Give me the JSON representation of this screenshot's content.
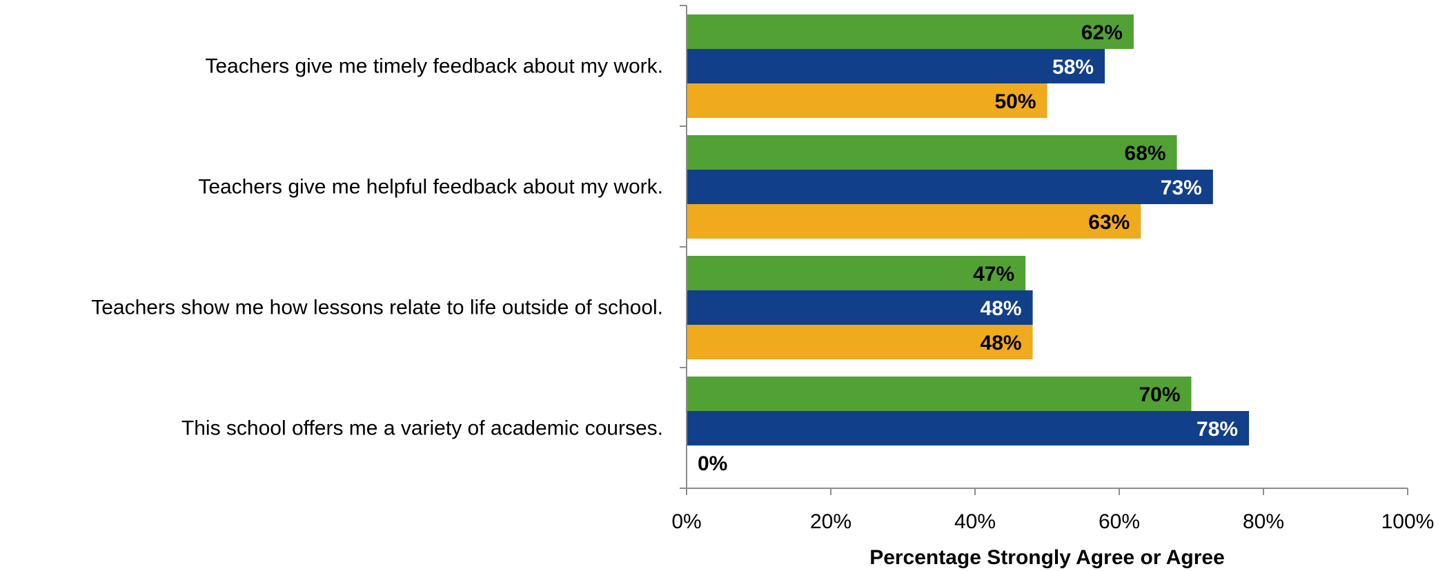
{
  "chart_data": {
    "type": "bar",
    "orientation": "horizontal",
    "categories": [
      "Teachers give me timely feedback about my work.",
      "Teachers give me helpful feedback about my work.",
      "Teachers show me how lessons relate to life outside of school.",
      "This school offers me a variety of academic courses."
    ],
    "series": [
      {
        "color": "#52A135",
        "label_color": "#000000",
        "values": [
          62,
          68,
          47,
          70
        ],
        "labels": [
          "62%",
          "68%",
          "47%",
          "70%"
        ]
      },
      {
        "color": "#123F8A",
        "label_color": "#FFFFFF",
        "values": [
          58,
          73,
          48,
          78
        ],
        "labels": [
          "58%",
          "73%",
          "48%",
          "78%"
        ]
      },
      {
        "color": "#F0AA1E",
        "label_color": "#000000",
        "values": [
          50,
          63,
          48,
          0
        ],
        "labels": [
          "50%",
          "63%",
          "48%",
          "0%"
        ]
      }
    ],
    "xlabel": "Percentage Strongly Agree or Agree",
    "xlim": [
      0,
      100
    ],
    "xticks": [
      0,
      20,
      40,
      60,
      80,
      100
    ],
    "xtick_labels": [
      "0%",
      "20%",
      "40%",
      "60%",
      "80%",
      "100%"
    ],
    "grid": false
  }
}
